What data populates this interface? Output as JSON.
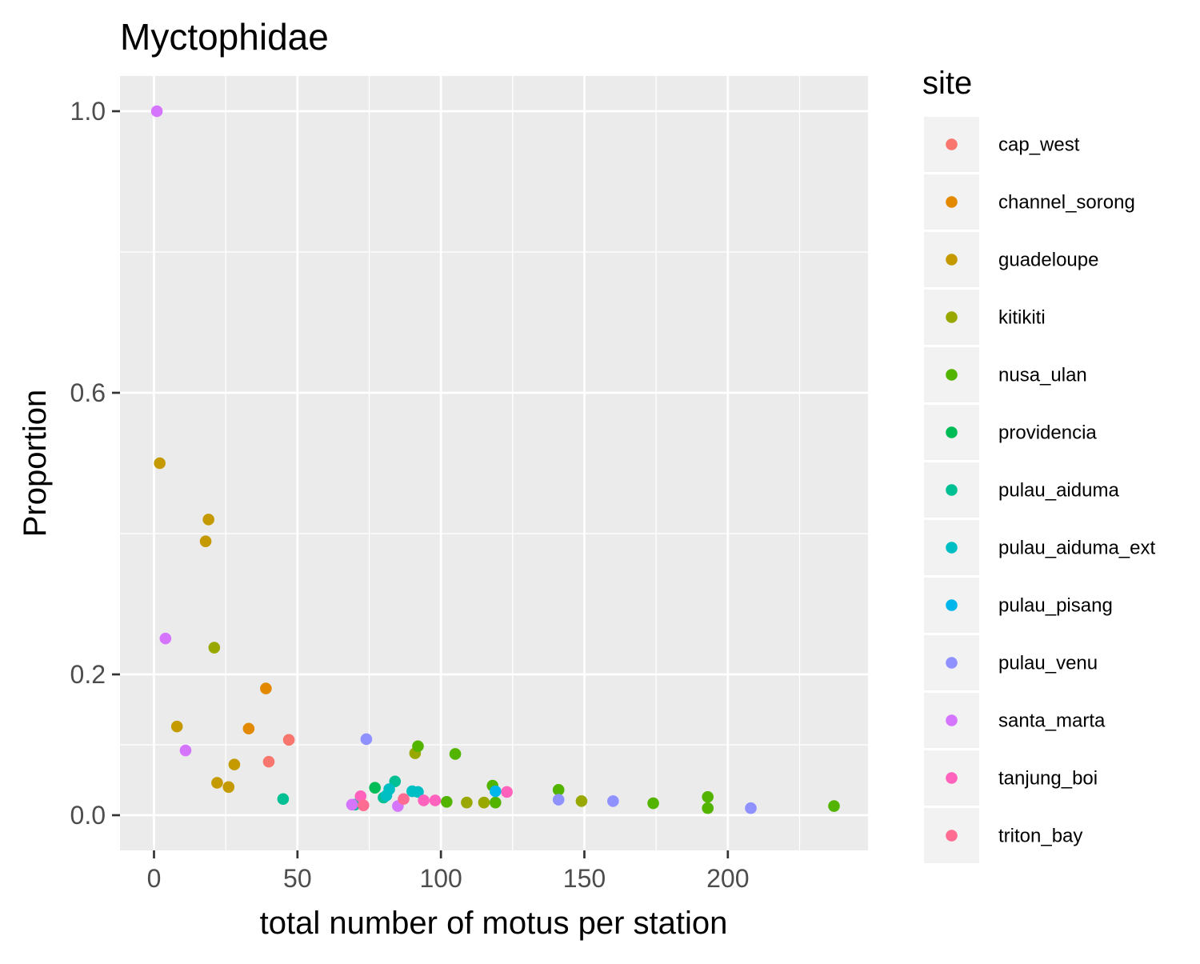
{
  "chart_data": {
    "type": "scatter",
    "title": "Myctophidae",
    "xlabel": "total number of motus per station",
    "ylabel": "Proportion",
    "xlim": [
      -11.85,
      248.85
    ],
    "ylim": [
      -0.05,
      1.05
    ],
    "x_ticks": [
      0,
      50,
      100,
      150,
      200
    ],
    "x_tick_labels": [
      "0",
      "50",
      "100",
      "150",
      "200"
    ],
    "x_minor_ticks": [
      25,
      75,
      125,
      175,
      225
    ],
    "y_ticks": [
      0.0,
      0.2,
      0.6,
      1.0
    ],
    "y_tick_labels": [
      "0.0",
      "0.2",
      "0.6",
      "1.0"
    ],
    "y_minor_ticks": [
      0.1,
      0.4,
      0.8
    ],
    "grid": true,
    "legend": {
      "title": "site",
      "position": "right"
    },
    "series": [
      {
        "name": "cap_west",
        "color": "#F8766D",
        "points": [
          [
            47,
            0.107
          ],
          [
            40,
            0.076
          ]
        ]
      },
      {
        "name": "channel_sorong",
        "color": "#E38900",
        "points": [
          [
            39,
            0.18
          ],
          [
            33,
            0.123
          ]
        ]
      },
      {
        "name": "guadeloupe",
        "color": "#C49A00",
        "points": [
          [
            2,
            0.5
          ],
          [
            19,
            0.42
          ],
          [
            18,
            0.389
          ],
          [
            8,
            0.126
          ],
          [
            28,
            0.072
          ],
          [
            22,
            0.046
          ],
          [
            26,
            0.04
          ]
        ]
      },
      {
        "name": "kitikiti",
        "color": "#99A800",
        "points": [
          [
            21,
            0.238
          ],
          [
            91,
            0.088
          ],
          [
            109,
            0.018
          ],
          [
            115,
            0.018
          ],
          [
            149,
            0.02
          ]
        ]
      },
      {
        "name": "nusa_ulan",
        "color": "#53B400",
        "points": [
          [
            92,
            0.098
          ],
          [
            105,
            0.087
          ],
          [
            118,
            0.042
          ],
          [
            119,
            0.018
          ],
          [
            102,
            0.019
          ],
          [
            141,
            0.036
          ],
          [
            174,
            0.017
          ],
          [
            193,
            0.026
          ],
          [
            193,
            0.01
          ],
          [
            237,
            0.013
          ]
        ]
      },
      {
        "name": "providencia",
        "color": "#00BC56",
        "points": [
          [
            77,
            0.039
          ]
        ]
      },
      {
        "name": "pulau_aiduma",
        "color": "#00C094",
        "points": [
          [
            45,
            0.023
          ],
          [
            84,
            0.048
          ],
          [
            80,
            0.025
          ],
          [
            70,
            0.015
          ]
        ]
      },
      {
        "name": "pulau_aiduma_ext",
        "color": "#00BFC4",
        "points": [
          [
            82,
            0.037
          ],
          [
            90,
            0.034
          ],
          [
            92,
            0.033
          ],
          [
            81,
            0.028
          ]
        ]
      },
      {
        "name": "pulau_pisang",
        "color": "#00B6EB",
        "points": [
          [
            119,
            0.034
          ]
        ]
      },
      {
        "name": "pulau_venu",
        "color": "#8F91FF",
        "points": [
          [
            74,
            0.108
          ],
          [
            141,
            0.022
          ],
          [
            160,
            0.02
          ],
          [
            208,
            0.01
          ]
        ]
      },
      {
        "name": "santa_marta",
        "color": "#D575FE",
        "points": [
          [
            1,
            1.0
          ],
          [
            4,
            0.251
          ],
          [
            11,
            0.092
          ],
          [
            69,
            0.015
          ],
          [
            85,
            0.013
          ]
        ]
      },
      {
        "name": "tanjung_boi",
        "color": "#FF62BC",
        "points": [
          [
            72,
            0.027
          ],
          [
            94,
            0.021
          ],
          [
            98,
            0.021
          ],
          [
            123,
            0.033
          ]
        ]
      },
      {
        "name": "triton_bay",
        "color": "#FF6C91",
        "points": [
          [
            87,
            0.023
          ],
          [
            73,
            0.014
          ]
        ]
      }
    ]
  }
}
